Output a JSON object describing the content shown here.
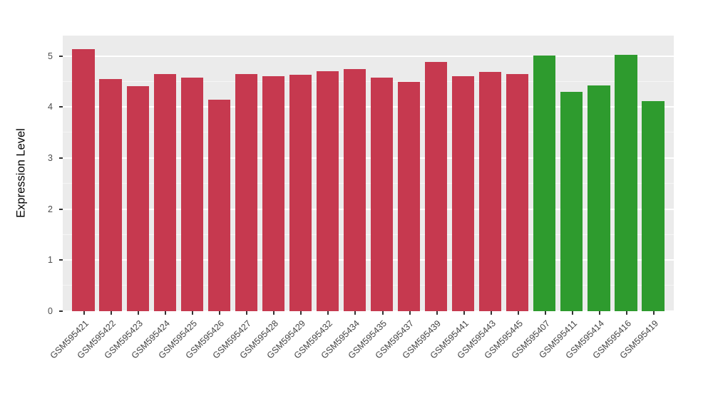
{
  "chart_data": {
    "type": "bar",
    "title": "",
    "xlabel": "",
    "ylabel": "Expression Level",
    "ylim": [
      0,
      5.4
    ],
    "yticks": [
      0,
      1,
      2,
      3,
      4,
      5
    ],
    "minor_gridlines": [
      0.5,
      1.5,
      2.5,
      3.5,
      4.5
    ],
    "grid": true,
    "legend_position": "none",
    "panel_bg": "#EBEBEB",
    "grid_color": "#FFFFFF",
    "categories": [
      "GSM595421",
      "GSM595422",
      "GSM595423",
      "GSM595424",
      "GSM595425",
      "GSM595426",
      "GSM595427",
      "GSM595428",
      "GSM595429",
      "GSM595432",
      "GSM595434",
      "GSM595435",
      "GSM595437",
      "GSM595439",
      "GSM595441",
      "GSM595443",
      "GSM595445",
      "GSM595407",
      "GSM595411",
      "GSM595414",
      "GSM595416",
      "GSM595419"
    ],
    "values": [
      5.13,
      4.55,
      4.41,
      4.65,
      4.57,
      4.14,
      4.64,
      4.6,
      4.63,
      4.7,
      4.75,
      4.57,
      4.5,
      4.88,
      4.61,
      4.69,
      4.64,
      5.01,
      4.3,
      4.43,
      5.02,
      4.12
    ],
    "bar_colors": [
      "#C6394F",
      "#C6394F",
      "#C6394F",
      "#C6394F",
      "#C6394F",
      "#C6394F",
      "#C6394F",
      "#C6394F",
      "#C6394F",
      "#C6394F",
      "#C6394F",
      "#C6394F",
      "#C6394F",
      "#C6394F",
      "#C6394F",
      "#C6394F",
      "#C6394F",
      "#2E9B2E",
      "#2E9B2E",
      "#2E9B2E",
      "#2E9B2E",
      "#2E9B2E"
    ],
    "group_colors": {
      "group1": "#C6394F",
      "group2": "#2E9B2E"
    }
  }
}
